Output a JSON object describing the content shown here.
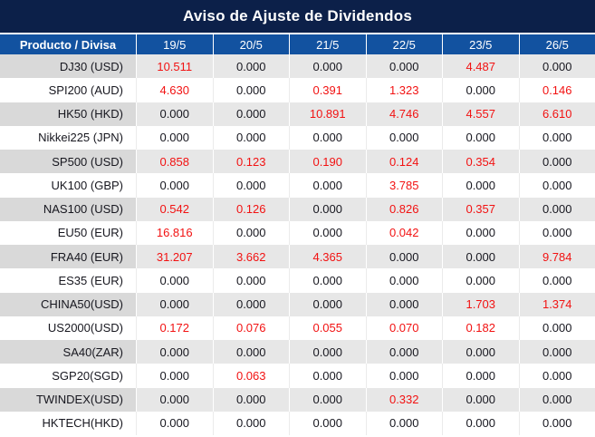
{
  "title": "Aviso de Ajuste de Dividendos",
  "colors": {
    "title_bar_bg": "#0c2049",
    "header_row_bg": "#1252a0",
    "header_text": "#ffffff",
    "row_stripe_bg": "#e7e7e7",
    "row_stripe_product_bg": "#d9d9d9",
    "row_white_bg": "#ffffff",
    "value_text": "#17171f",
    "value_nonzero_red": "#f21212"
  },
  "table": {
    "product_column_header": "Producto / Divisa",
    "date_columns": [
      "19/5",
      "20/5",
      "21/5",
      "22/5",
      "23/5",
      "26/5"
    ],
    "rows": [
      {
        "product": "DJ30 (USD)",
        "values": [
          "10.511",
          "0.000",
          "0.000",
          "0.000",
          "4.487",
          "0.000"
        ]
      },
      {
        "product": "SPI200 (AUD)",
        "values": [
          "4.630",
          "0.000",
          "0.391",
          "1.323",
          "0.000",
          "0.146"
        ]
      },
      {
        "product": "HK50 (HKD)",
        "values": [
          "0.000",
          "0.000",
          "10.891",
          "4.746",
          "4.557",
          "6.610"
        ]
      },
      {
        "product": "Nikkei225 (JPN)",
        "values": [
          "0.000",
          "0.000",
          "0.000",
          "0.000",
          "0.000",
          "0.000"
        ]
      },
      {
        "product": "SP500 (USD)",
        "values": [
          "0.858",
          "0.123",
          "0.190",
          "0.124",
          "0.354",
          "0.000"
        ]
      },
      {
        "product": "UK100 (GBP)",
        "values": [
          "0.000",
          "0.000",
          "0.000",
          "3.785",
          "0.000",
          "0.000"
        ]
      },
      {
        "product": "NAS100 (USD)",
        "values": [
          "0.542",
          "0.126",
          "0.000",
          "0.826",
          "0.357",
          "0.000"
        ]
      },
      {
        "product": "EU50 (EUR)",
        "values": [
          "16.816",
          "0.000",
          "0.000",
          "0.042",
          "0.000",
          "0.000"
        ]
      },
      {
        "product": "FRA40 (EUR)",
        "values": [
          "31.207",
          "3.662",
          "4.365",
          "0.000",
          "0.000",
          "9.784"
        ]
      },
      {
        "product": "ES35 (EUR)",
        "values": [
          "0.000",
          "0.000",
          "0.000",
          "0.000",
          "0.000",
          "0.000"
        ]
      },
      {
        "product": "CHINA50(USD)",
        "values": [
          "0.000",
          "0.000",
          "0.000",
          "0.000",
          "1.703",
          "1.374"
        ]
      },
      {
        "product": "US2000(USD)",
        "values": [
          "0.172",
          "0.076",
          "0.055",
          "0.070",
          "0.182",
          "0.000"
        ]
      },
      {
        "product": "SA40(ZAR)",
        "values": [
          "0.000",
          "0.000",
          "0.000",
          "0.000",
          "0.000",
          "0.000"
        ]
      },
      {
        "product": "SGP20(SGD)",
        "values": [
          "0.000",
          "0.063",
          "0.000",
          "0.000",
          "0.000",
          "0.000"
        ]
      },
      {
        "product": "TWINDEX(USD)",
        "values": [
          "0.000",
          "0.000",
          "0.000",
          "0.332",
          "0.000",
          "0.000"
        ]
      },
      {
        "product": "HKTECH(HKD)",
        "values": [
          "0.000",
          "0.000",
          "0.000",
          "0.000",
          "0.000",
          "0.000"
        ]
      }
    ]
  },
  "chart_data": {
    "type": "table",
    "title": "Aviso de Ajuste de Dividendos",
    "columns": [
      "Producto / Divisa",
      "19/5",
      "20/5",
      "21/5",
      "22/5",
      "23/5",
      "26/5"
    ],
    "rows": [
      [
        "DJ30 (USD)",
        10.511,
        0.0,
        0.0,
        0.0,
        4.487,
        0.0
      ],
      [
        "SPI200 (AUD)",
        4.63,
        0.0,
        0.391,
        1.323,
        0.0,
        0.146
      ],
      [
        "HK50 (HKD)",
        0.0,
        0.0,
        10.891,
        4.746,
        4.557,
        6.61
      ],
      [
        "Nikkei225 (JPN)",
        0.0,
        0.0,
        0.0,
        0.0,
        0.0,
        0.0
      ],
      [
        "SP500 (USD)",
        0.858,
        0.123,
        0.19,
        0.124,
        0.354,
        0.0
      ],
      [
        "UK100 (GBP)",
        0.0,
        0.0,
        0.0,
        3.785,
        0.0,
        0.0
      ],
      [
        "NAS100 (USD)",
        0.542,
        0.126,
        0.0,
        0.826,
        0.357,
        0.0
      ],
      [
        "EU50 (EUR)",
        16.816,
        0.0,
        0.0,
        0.042,
        0.0,
        0.0
      ],
      [
        "FRA40 (EUR)",
        31.207,
        3.662,
        4.365,
        0.0,
        0.0,
        9.784
      ],
      [
        "ES35 (EUR)",
        0.0,
        0.0,
        0.0,
        0.0,
        0.0,
        0.0
      ],
      [
        "CHINA50(USD)",
        0.0,
        0.0,
        0.0,
        0.0,
        1.703,
        1.374
      ],
      [
        "US2000(USD)",
        0.172,
        0.076,
        0.055,
        0.07,
        0.182,
        0.0
      ],
      [
        "SA40(ZAR)",
        0.0,
        0.0,
        0.0,
        0.0,
        0.0,
        0.0
      ],
      [
        "SGP20(SGD)",
        0.0,
        0.063,
        0.0,
        0.0,
        0.0,
        0.0
      ],
      [
        "TWINDEX(USD)",
        0.0,
        0.0,
        0.0,
        0.332,
        0.0,
        0.0
      ],
      [
        "HKTECH(HKD)",
        0.0,
        0.0,
        0.0,
        0.0,
        0.0,
        0.0
      ]
    ],
    "notes": "Non-zero values are displayed in red; zero values in dark text. Rows zebra-striped starting gray."
  }
}
